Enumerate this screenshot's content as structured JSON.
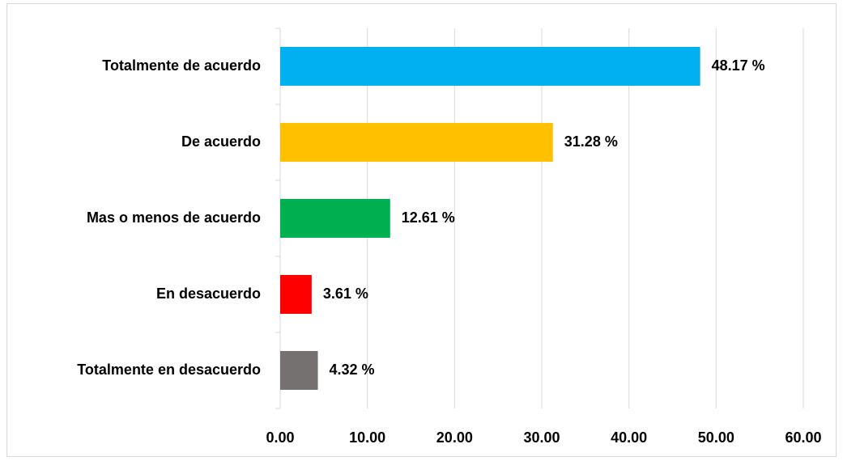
{
  "chart_data": {
    "type": "bar",
    "orientation": "horizontal",
    "categories": [
      "Totalmente de acuerdo",
      "De acuerdo",
      "Mas o menos de acuerdo",
      "En desacuerdo",
      "Totalmente en desacuerdo"
    ],
    "values": [
      48.17,
      31.28,
      12.61,
      3.61,
      4.32
    ],
    "value_labels": [
      "48.17 %",
      "31.28 %",
      "12.61 %",
      "3.61 %",
      "4.32 %"
    ],
    "colors": [
      "#00b0f0",
      "#ffc000",
      "#00b050",
      "#ff0000",
      "#767171"
    ],
    "xlim": [
      0,
      60
    ],
    "xticks": [
      {
        "value": 0,
        "label": "0.00"
      },
      {
        "value": 10,
        "label": "10.00"
      },
      {
        "value": 20,
        "label": "20.00"
      },
      {
        "value": 30,
        "label": "30.00"
      },
      {
        "value": 40,
        "label": "40.00"
      },
      {
        "value": 50,
        "label": "50.00"
      },
      {
        "value": 60,
        "label": "60.00"
      }
    ],
    "grid": true
  }
}
